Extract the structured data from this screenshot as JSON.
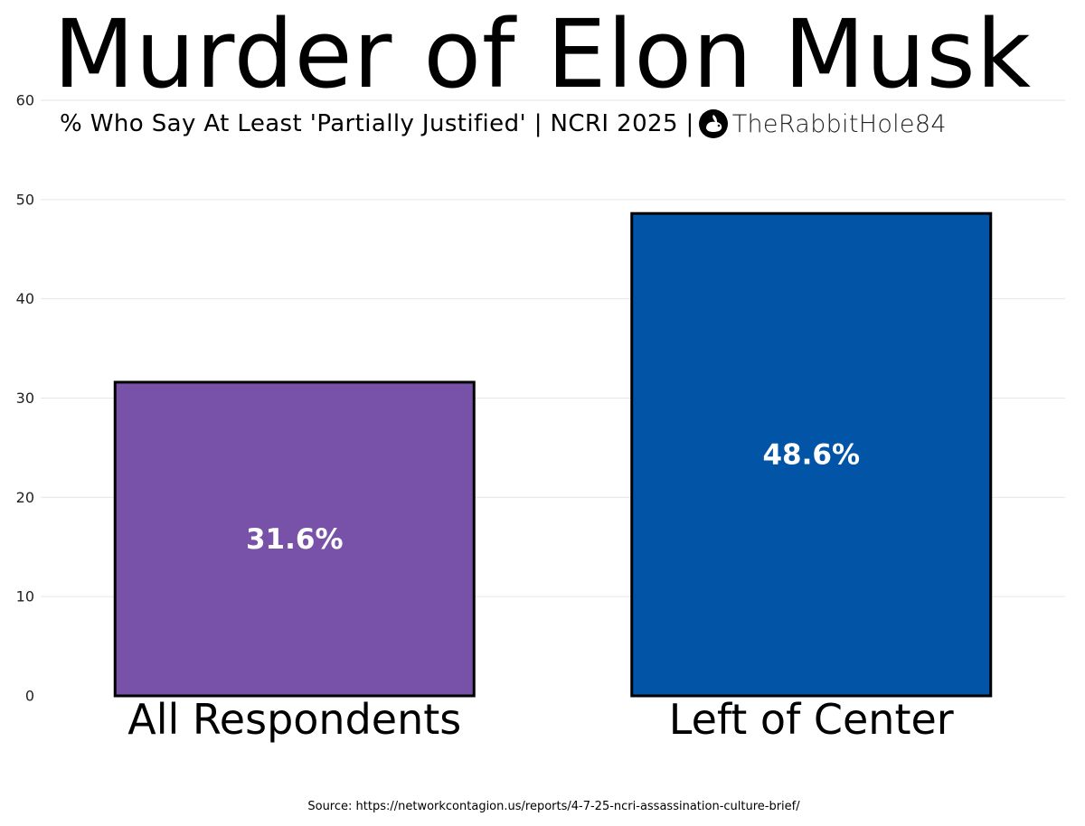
{
  "chart_data": {
    "type": "bar",
    "title": "Murder of Elon Musk",
    "subtitle": "% Who Say At Least 'Partially Justified' | NCRI 2025 |",
    "watermark": "TheRabbitHole84",
    "categories": [
      "All Respondents",
      "Left of Center"
    ],
    "values": [
      31.6,
      48.6
    ],
    "data_labels": [
      "31.6%",
      "48.6%"
    ],
    "colors": [
      "#7852a8",
      "#0254a6"
    ],
    "xlabel": "",
    "ylabel": "",
    "ylim": [
      0,
      60
    ],
    "yticks": [
      0,
      10,
      20,
      30,
      40,
      50,
      60
    ],
    "ytick_labels": [
      "0",
      "10",
      "20",
      "30",
      "40",
      "50",
      "60"
    ],
    "grid": true,
    "legend": "none"
  },
  "source": "Source: https://networkcontagion.us/reports/4-7-25-ncri-assassination-culture-brief/"
}
